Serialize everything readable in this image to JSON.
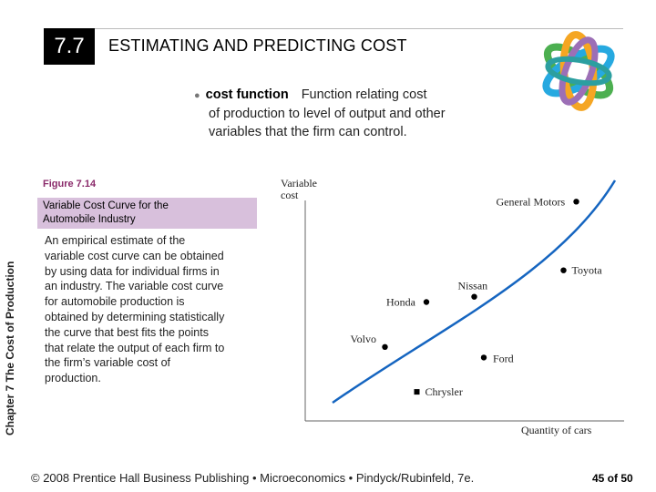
{
  "header": {
    "section_number": "7.7",
    "title": "ESTIMATING AND PREDICTING COST"
  },
  "logo_icon": "interlocking-rings-logo",
  "definition": {
    "bullet": "●",
    "term": "cost function",
    "text_line1": "Function relating cost",
    "text_line2": "of production to level of output and other",
    "text_line3": "variables that the firm can control."
  },
  "figure": {
    "number": "Figure 7.14",
    "title_line1": "Variable Cost Curve for the",
    "title_line2": "Automobile Industry"
  },
  "sidebar_label": "Chapter 7  The Cost of Production",
  "body_text": "An empirical estimate of the variable cost curve can be obtained by using data for individual firms in an industry. The variable cost curve for automobile production is obtained by determining statistically the curve that best fits the points that relate the output of each firm to the firm’s variable cost of production.",
  "chart_data": {
    "type": "scatter",
    "ylabel_line1": "Variable",
    "ylabel_line2": "cost",
    "xlabel": "Quantity of cars",
    "curve_color": "#1565c0",
    "points": [
      {
        "label": "General Motors",
        "x": 8.5,
        "y": 8.3
      },
      {
        "label": "Toyota",
        "x": 8.1,
        "y": 5.7
      },
      {
        "label": "Nissan",
        "x": 5.3,
        "y": 4.7
      },
      {
        "label": "Honda",
        "x": 3.8,
        "y": 4.5
      },
      {
        "label": "Volvo",
        "x": 2.5,
        "y": 2.8
      },
      {
        "label": "Ford",
        "x": 5.6,
        "y": 2.4
      },
      {
        "label": "Chrysler",
        "x": 3.5,
        "y": 1.1
      }
    ]
  },
  "footer": {
    "text": "© 2008 Prentice Hall Business Publishing  •  Microeconomics  •  Pindyck/Rubinfeld, 7e.",
    "page": "45 of 50"
  }
}
